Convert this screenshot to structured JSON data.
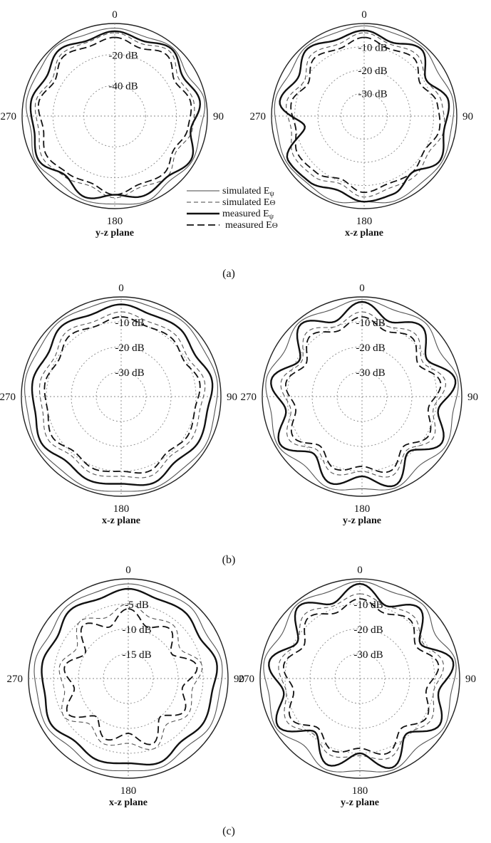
{
  "figure": {
    "captions": [
      "(a)",
      "(b)",
      "(c)"
    ]
  },
  "legend": {
    "entries": [
      {
        "text": "simulated E",
        "sub": "ψ",
        "style": "thin-solid"
      },
      {
        "text": "simulated E",
        "sub": "Θ",
        "style": "thin-dashed"
      },
      {
        "text": "measured E",
        "sub": "ψ",
        "style": "thick-solid"
      },
      {
        "text": "measured E",
        "sub": "Θ",
        "style": "thick-dashed"
      }
    ]
  },
  "chart_data": [
    {
      "type": "polar",
      "panel": "(a)",
      "position": "left",
      "angle_labels": {
        "top": "0",
        "right": "90",
        "bottom": "180",
        "left": "270"
      },
      "plane": "y-z plane",
      "ring_labels": [
        "-20 dB",
        "-40 dB"
      ],
      "rings_db": [
        0,
        -20,
        -40
      ],
      "range_db": [
        -60,
        0
      ],
      "series": [
        {
          "name": "simulated Eψ",
          "style": "thin-solid",
          "r_db": [
            -3,
            -5,
            -2,
            -6,
            -1,
            -4,
            -2,
            -5,
            -1,
            -3,
            -2,
            -4,
            -1,
            -5,
            -2,
            -3,
            -1,
            -4
          ]
        },
        {
          "name": "simulated EΘ",
          "style": "thin-dashed",
          "r_db": [
            -6,
            -10,
            -5,
            -12,
            -8,
            -9,
            -14,
            -8,
            -11,
            -7,
            -12,
            -9,
            -6,
            -10,
            -8,
            -13,
            -7,
            -9
          ]
        },
        {
          "name": "measured Eψ",
          "style": "thick-solid",
          "r_db": [
            -5,
            -8,
            -3,
            -9,
            -4,
            -10,
            -3,
            -8,
            -5,
            -9,
            -4,
            -10,
            -3,
            -7,
            -5,
            -9,
            -4,
            -8
          ]
        },
        {
          "name": "measured EΘ",
          "style": "thick-dashed",
          "r_db": [
            -9,
            -13,
            -8,
            -15,
            -10,
            -12,
            -16,
            -11,
            -13,
            -9,
            -14,
            -12,
            -9,
            -13,
            -10,
            -15,
            -9,
            -12
          ]
        }
      ]
    },
    {
      "type": "polar",
      "panel": "(a)",
      "position": "right",
      "angle_labels": {
        "top": "0",
        "right": "90",
        "bottom": "180",
        "left": "270"
      },
      "plane": "x-z plane",
      "ring_labels": [
        "-10 dB",
        "-20 dB",
        "-30 dB"
      ],
      "rings_db": [
        0,
        -10,
        -20,
        -30
      ],
      "range_db": [
        -40,
        0
      ],
      "series": [
        {
          "name": "simulated Eψ",
          "style": "thin-solid",
          "r_db": [
            -1,
            -2,
            -1,
            -3,
            -1,
            -2,
            -1,
            -2,
            -1,
            -3,
            -1,
            -2,
            -1,
            -2,
            -1,
            -3,
            -1,
            -2
          ]
        },
        {
          "name": "simulated EΘ",
          "style": "thin-dashed",
          "r_db": [
            -4,
            -7,
            -5,
            -9,
            -6,
            -5,
            -8,
            -6,
            -7,
            -5,
            -9,
            -6,
            -5,
            -8,
            -6,
            -10,
            -5,
            -7
          ]
        },
        {
          "name": "measured Eψ",
          "style": "thick-solid",
          "r_db": [
            -3,
            -6,
            -2,
            -9,
            -3,
            -5,
            -2,
            -8,
            -4,
            -3,
            -6,
            -3,
            -2,
            -14,
            -3,
            -7,
            -2,
            -5
          ]
        },
        {
          "name": "measured EΘ",
          "style": "thick-dashed",
          "r_db": [
            -6,
            -9,
            -7,
            -12,
            -8,
            -7,
            -10,
            -8,
            -9,
            -7,
            -11,
            -8,
            -7,
            -10,
            -8,
            -12,
            -7,
            -9
          ]
        }
      ]
    },
    {
      "type": "polar",
      "panel": "(b)",
      "position": "left",
      "angle_labels": {
        "top": "0",
        "right": "90",
        "bottom": "180",
        "left": "270"
      },
      "plane": "x-z plane",
      "ring_labels": [
        "-10 dB",
        "-20 dB",
        "-30 dB"
      ],
      "rings_db": [
        0,
        -10,
        -20,
        -30
      ],
      "range_db": [
        -40,
        0
      ],
      "series": [
        {
          "name": "simulated Eψ",
          "style": "thin-solid",
          "r_db": [
            -1,
            -2,
            -1,
            -2,
            -1,
            -2,
            -1,
            -2,
            -1,
            -2,
            -1,
            -2,
            -1,
            -2,
            -1,
            -2,
            -1,
            -2
          ]
        },
        {
          "name": "simulated EΘ",
          "style": "thin-dashed",
          "r_db": [
            -6,
            -8,
            -7,
            -9,
            -6,
            -8,
            -7,
            -9,
            -6,
            -8,
            -7,
            -9,
            -6,
            -8,
            -7,
            -9,
            -6,
            -8
          ]
        },
        {
          "name": "measured Eψ",
          "style": "thick-solid",
          "r_db": [
            -3,
            -5,
            -4,
            -6,
            -3,
            -5,
            -4,
            -6,
            -3,
            -5,
            -4,
            -6,
            -3,
            -5,
            -4,
            -6,
            -3,
            -5
          ]
        },
        {
          "name": "measured EΘ",
          "style": "thick-dashed",
          "r_db": [
            -8,
            -10,
            -9,
            -11,
            -8,
            -10,
            -9,
            -11,
            -8,
            -10,
            -9,
            -11,
            -8,
            -10,
            -9,
            -11,
            -8,
            -10
          ]
        }
      ]
    },
    {
      "type": "polar",
      "panel": "(b)",
      "position": "right",
      "angle_labels": {
        "top": "0",
        "right": "90",
        "bottom": "180",
        "left": "270"
      },
      "plane": "y-z plane",
      "ring_labels": [
        "-10 dB",
        "-20 dB",
        "-30 dB"
      ],
      "rings_db": [
        0,
        -10,
        -20,
        -30
      ],
      "range_db": [
        -40,
        0
      ],
      "series": [
        {
          "name": "simulated Eψ",
          "style": "thin-solid",
          "r_db": [
            -1,
            -3,
            -1,
            -4,
            -1,
            -3,
            -1,
            -4,
            -1,
            -3,
            -1,
            -4,
            -1,
            -3,
            -1,
            -4,
            -1,
            -3
          ]
        },
        {
          "name": "simulated EΘ",
          "style": "thin-dashed",
          "r_db": [
            -6,
            -10,
            -7,
            -12,
            -6,
            -11,
            -7,
            -12,
            -6,
            -10,
            -7,
            -12,
            -6,
            -11,
            -7,
            -12,
            -6,
            -10
          ]
        },
        {
          "name": "measured Eψ",
          "style": "thick-solid",
          "r_db": [
            -2,
            -8,
            -3,
            -10,
            -2,
            -9,
            -3,
            -11,
            -2,
            -8,
            -3,
            -10,
            -2,
            -9,
            -3,
            -11,
            -2,
            -8
          ]
        },
        {
          "name": "measured EΘ",
          "style": "thick-dashed",
          "r_db": [
            -8,
            -12,
            -9,
            -14,
            -8,
            -13,
            -9,
            -14,
            -8,
            -12,
            -9,
            -14,
            -8,
            -13,
            -9,
            -14,
            -8,
            -12
          ]
        }
      ]
    },
    {
      "type": "polar",
      "panel": "(c)",
      "position": "left",
      "angle_labels": {
        "top": "0",
        "right": "90",
        "bottom": "180",
        "left": "270"
      },
      "plane": "x-z plane",
      "ring_labels": [
        "-5 dB",
        "-10 dB",
        "-15 dB"
      ],
      "rings_db": [
        0,
        -5,
        -10,
        -15
      ],
      "range_db": [
        -20,
        0
      ],
      "series": [
        {
          "name": "simulated Eψ",
          "style": "thin-solid",
          "r_db": [
            -1,
            -1.5,
            -1,
            -2,
            -1,
            -1.5,
            -1,
            -2,
            -1,
            -1.5,
            -1,
            -2,
            -1,
            -1.5,
            -1,
            -2,
            -1,
            -1.5
          ]
        },
        {
          "name": "simulated EΘ",
          "style": "thin-dashed",
          "r_db": [
            -5,
            -7,
            -6,
            -8,
            -5,
            -7,
            -6,
            -8,
            -5,
            -7,
            -6,
            -8,
            -5,
            -7,
            -6,
            -8,
            -5,
            -7
          ]
        },
        {
          "name": "measured Eψ",
          "style": "thick-solid",
          "r_db": [
            -2,
            -3,
            -2.5,
            -3.5,
            -2,
            -3,
            -2.5,
            -3.5,
            -2,
            -3,
            -2.5,
            -3.5,
            -2,
            -3,
            -2.5,
            -3.5,
            -2,
            -3
          ]
        },
        {
          "name": "measured EΘ",
          "style": "thick-dashed",
          "r_db": [
            -6,
            -9,
            -7,
            -10,
            -6,
            -9,
            -7,
            -10,
            -6,
            -9,
            -7,
            -10,
            -6,
            -9,
            -7,
            -10,
            -6,
            -9
          ]
        }
      ]
    },
    {
      "type": "polar",
      "panel": "(c)",
      "position": "right",
      "angle_labels": {
        "top": "0",
        "right": "90",
        "bottom": "180",
        "left": "270"
      },
      "plane": "y-z plane",
      "ring_labels": [
        "-10 dB",
        "-20 dB",
        "-30 dB"
      ],
      "rings_db": [
        0,
        -10,
        -20,
        -30
      ],
      "range_db": [
        -40,
        0
      ],
      "series": [
        {
          "name": "simulated Eψ",
          "style": "thin-solid",
          "r_db": [
            -1,
            -3,
            -1,
            -5,
            -1,
            -3,
            -1,
            -4,
            -1,
            -3,
            -1,
            -5,
            -1,
            -3,
            -1,
            -4,
            -1,
            -3
          ]
        },
        {
          "name": "simulated EΘ",
          "style": "thin-dashed",
          "r_db": [
            -6,
            -9,
            -7,
            -11,
            -6,
            -10,
            -7,
            -11,
            -6,
            -9,
            -7,
            -11,
            -6,
            -10,
            -7,
            -11,
            -6,
            -9
          ]
        },
        {
          "name": "measured Eψ",
          "style": "thick-solid",
          "r_db": [
            -2,
            -9,
            -3,
            -12,
            -2,
            -8,
            -3,
            -11,
            -2,
            -10,
            -3,
            -12,
            -2,
            -9,
            -3,
            -11,
            -2,
            -8
          ]
        },
        {
          "name": "measured EΘ",
          "style": "thick-dashed",
          "r_db": [
            -8,
            -12,
            -9,
            -14,
            -8,
            -13,
            -9,
            -14,
            -8,
            -12,
            -9,
            -14,
            -8,
            -13,
            -9,
            -14,
            -8,
            -12
          ]
        }
      ]
    }
  ]
}
